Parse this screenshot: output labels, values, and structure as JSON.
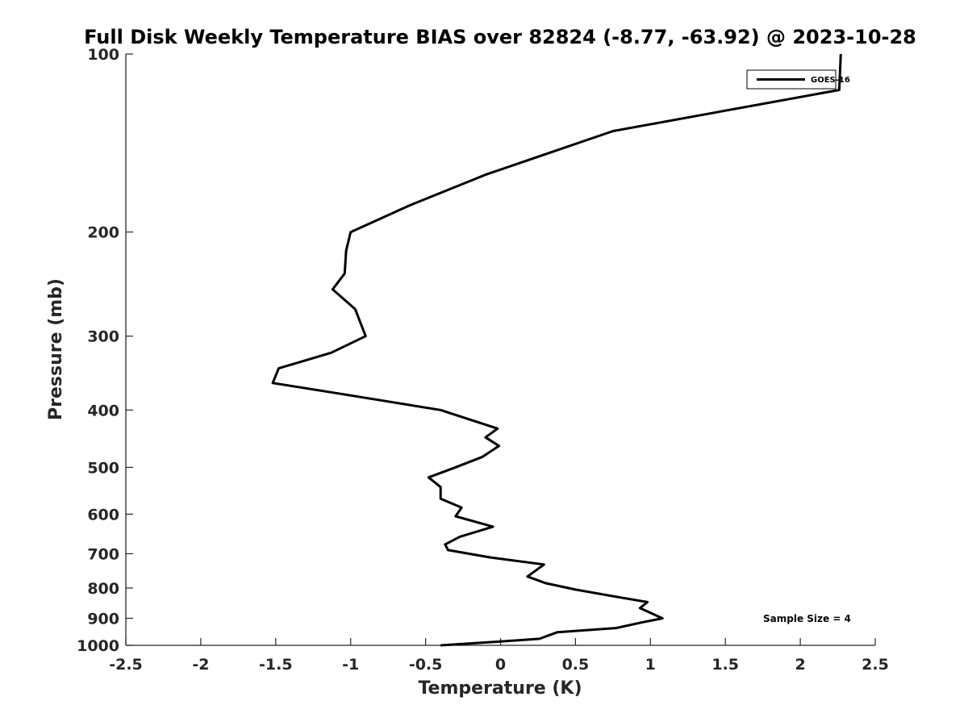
{
  "chart_data": {
    "type": "line",
    "title": "Full Disk Weekly Temperature BIAS over 82824 (-8.77, -63.92) @ 2023-10-28",
    "xlabel": "Temperature (K)",
    "ylabel": "Pressure (mb)",
    "xlim": [
      -2.5,
      2.5
    ],
    "ylim": [
      1000,
      100
    ],
    "yscale": "log",
    "y_reversed": true,
    "grid": false,
    "legend_position": "top-right",
    "x_ticks": [
      "-2.5",
      "-2",
      "-1.5",
      "-1",
      "-0.5",
      "0",
      "0.5",
      "1",
      "1.5",
      "2",
      "2.5"
    ],
    "y_ticks": [
      "100",
      "200",
      "300",
      "400",
      "500",
      "600",
      "700",
      "800",
      "900",
      "1000"
    ],
    "annotation": "Sample Size = 4",
    "series": [
      {
        "name": "GOES-16",
        "color": "#000000",
        "points": [
          {
            "x": 2.27,
            "y": 100
          },
          {
            "x": 2.26,
            "y": 115
          },
          {
            "x": 0.75,
            "y": 135
          },
          {
            "x": -0.1,
            "y": 160
          },
          {
            "x": -0.6,
            "y": 180
          },
          {
            "x": -1.0,
            "y": 200
          },
          {
            "x": -1.03,
            "y": 215
          },
          {
            "x": -1.04,
            "y": 235
          },
          {
            "x": -1.12,
            "y": 250
          },
          {
            "x": -0.97,
            "y": 270
          },
          {
            "x": -0.9,
            "y": 300
          },
          {
            "x": -1.13,
            "y": 320
          },
          {
            "x": -1.48,
            "y": 340
          },
          {
            "x": -1.52,
            "y": 360
          },
          {
            "x": -1.08,
            "y": 375
          },
          {
            "x": -0.4,
            "y": 400
          },
          {
            "x": -0.02,
            "y": 430
          },
          {
            "x": -0.1,
            "y": 445
          },
          {
            "x": -0.01,
            "y": 460
          },
          {
            "x": -0.12,
            "y": 480
          },
          {
            "x": -0.3,
            "y": 500
          },
          {
            "x": -0.48,
            "y": 520
          },
          {
            "x": -0.4,
            "y": 540
          },
          {
            "x": -0.4,
            "y": 565
          },
          {
            "x": -0.26,
            "y": 585
          },
          {
            "x": -0.3,
            "y": 605
          },
          {
            "x": -0.05,
            "y": 630
          },
          {
            "x": -0.27,
            "y": 655
          },
          {
            "x": -0.37,
            "y": 675
          },
          {
            "x": -0.35,
            "y": 690
          },
          {
            "x": -0.07,
            "y": 710
          },
          {
            "x": 0.29,
            "y": 730
          },
          {
            "x": 0.18,
            "y": 765
          },
          {
            "x": 0.3,
            "y": 785
          },
          {
            "x": 0.5,
            "y": 805
          },
          {
            "x": 0.8,
            "y": 830
          },
          {
            "x": 0.98,
            "y": 845
          },
          {
            "x": 0.93,
            "y": 865
          },
          {
            "x": 1.08,
            "y": 900
          },
          {
            "x": 0.94,
            "y": 915
          },
          {
            "x": 0.77,
            "y": 935
          },
          {
            "x": 0.38,
            "y": 950
          },
          {
            "x": 0.26,
            "y": 975
          },
          {
            "x": 0.0,
            "y": 985
          },
          {
            "x": -0.4,
            "y": 1000
          }
        ]
      }
    ]
  }
}
